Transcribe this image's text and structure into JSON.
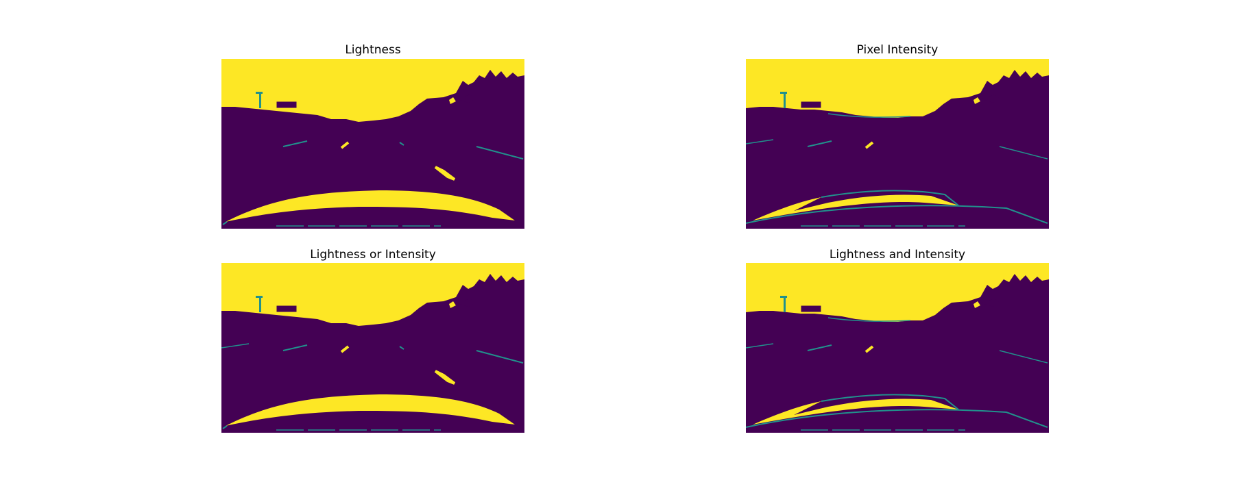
{
  "panels": [
    {
      "title": "Lightness"
    },
    {
      "title": "Pixel Intensity"
    },
    {
      "title": "Lightness or Intensity"
    },
    {
      "title": "Lightness and Intensity"
    }
  ],
  "colors": {
    "background_mask": "#440154",
    "foreground_mask": "#fde725",
    "edge_mask": "#21918c"
  }
}
